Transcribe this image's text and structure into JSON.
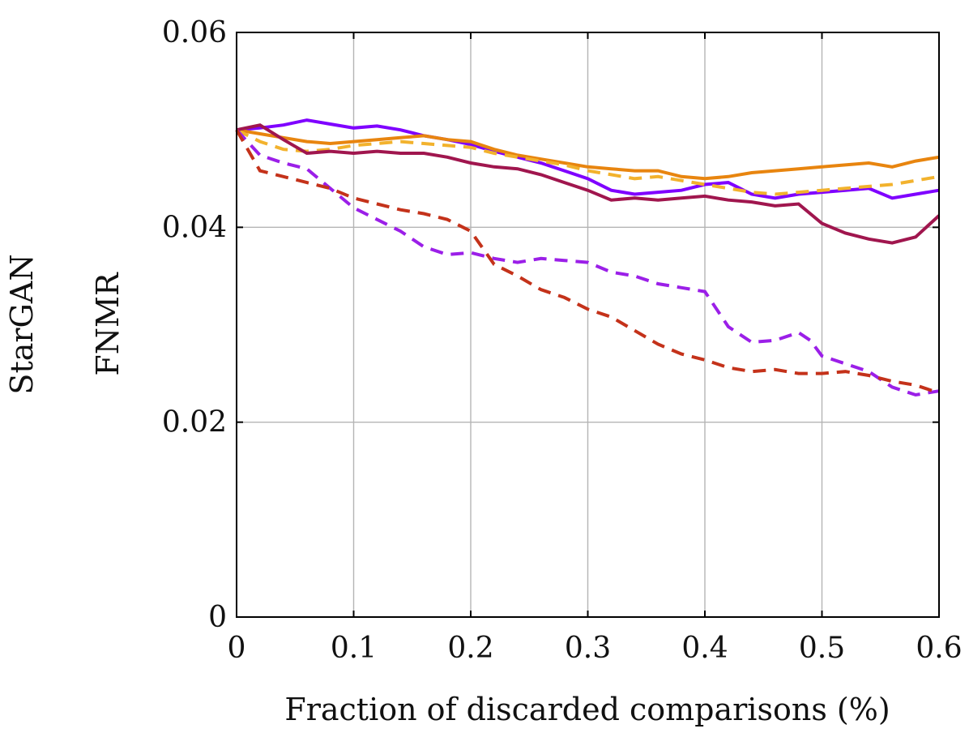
{
  "chart_data": {
    "type": "line",
    "row_label": "StarGAN",
    "xlabel": "Fraction of discarded comparisons (%)",
    "ylabel": "FNMR",
    "xlim": [
      0,
      0.6
    ],
    "ylim": [
      0,
      0.06
    ],
    "xticks": [
      0,
      0.1,
      0.2,
      0.3,
      0.4,
      0.5,
      0.6
    ],
    "xtick_labels": [
      "0",
      "0.1",
      "0.2",
      "0.3",
      "0.4",
      "0.5",
      "0.6"
    ],
    "yticks": [
      0,
      0.02,
      0.04,
      0.06
    ],
    "ytick_labels": [
      "0",
      "0.02",
      "0.04",
      "0.06"
    ],
    "grid": true,
    "series": [
      {
        "name": "purple-solid",
        "color": "#7F00FF",
        "dash": "solid",
        "x": [
          0,
          0.02,
          0.04,
          0.06,
          0.08,
          0.1,
          0.12,
          0.14,
          0.16,
          0.18,
          0.2,
          0.22,
          0.24,
          0.26,
          0.28,
          0.3,
          0.32,
          0.34,
          0.36,
          0.38,
          0.4,
          0.42,
          0.44,
          0.46,
          0.48,
          0.5,
          0.52,
          0.54,
          0.56,
          0.58,
          0.6
        ],
        "y": [
          0.05,
          0.0502,
          0.0505,
          0.051,
          0.0506,
          0.0502,
          0.0504,
          0.05,
          0.0494,
          0.049,
          0.0485,
          0.0478,
          0.0472,
          0.0466,
          0.0458,
          0.045,
          0.0438,
          0.0434,
          0.0436,
          0.0438,
          0.0444,
          0.0446,
          0.0434,
          0.043,
          0.0434,
          0.0436,
          0.0438,
          0.044,
          0.043,
          0.0434,
          0.0438
        ]
      },
      {
        "name": "orange-solid",
        "color": "#E8850F",
        "dash": "solid",
        "x": [
          0,
          0.02,
          0.04,
          0.06,
          0.08,
          0.1,
          0.12,
          0.14,
          0.16,
          0.18,
          0.2,
          0.22,
          0.24,
          0.26,
          0.28,
          0.3,
          0.32,
          0.34,
          0.36,
          0.38,
          0.4,
          0.42,
          0.44,
          0.46,
          0.48,
          0.5,
          0.52,
          0.54,
          0.56,
          0.58,
          0.6
        ],
        "y": [
          0.05,
          0.0496,
          0.0492,
          0.0488,
          0.0486,
          0.0488,
          0.049,
          0.0492,
          0.0494,
          0.049,
          0.0488,
          0.048,
          0.0474,
          0.047,
          0.0466,
          0.0462,
          0.046,
          0.0458,
          0.0458,
          0.0452,
          0.045,
          0.0452,
          0.0456,
          0.0458,
          0.046,
          0.0462,
          0.0464,
          0.0466,
          0.0462,
          0.0468,
          0.0472
        ]
      },
      {
        "name": "yellow-dashed",
        "color": "#F2B22D",
        "dash": "dashed",
        "x": [
          0,
          0.02,
          0.04,
          0.06,
          0.08,
          0.1,
          0.12,
          0.14,
          0.16,
          0.18,
          0.2,
          0.22,
          0.24,
          0.26,
          0.28,
          0.3,
          0.32,
          0.34,
          0.36,
          0.38,
          0.4,
          0.42,
          0.44,
          0.46,
          0.48,
          0.5,
          0.52,
          0.54,
          0.56,
          0.58,
          0.6
        ],
        "y": [
          0.05,
          0.0488,
          0.048,
          0.0478,
          0.048,
          0.0484,
          0.0486,
          0.0488,
          0.0486,
          0.0484,
          0.0482,
          0.0476,
          0.0472,
          0.0468,
          0.0464,
          0.0458,
          0.0454,
          0.045,
          0.0452,
          0.0448,
          0.0444,
          0.044,
          0.0436,
          0.0434,
          0.0436,
          0.0438,
          0.044,
          0.0442,
          0.0444,
          0.0448,
          0.0452
        ]
      },
      {
        "name": "maroon-solid",
        "color": "#A0164E",
        "dash": "solid",
        "x": [
          0,
          0.02,
          0.04,
          0.06,
          0.08,
          0.1,
          0.12,
          0.14,
          0.16,
          0.18,
          0.2,
          0.22,
          0.24,
          0.26,
          0.28,
          0.3,
          0.32,
          0.34,
          0.36,
          0.38,
          0.4,
          0.42,
          0.44,
          0.46,
          0.48,
          0.5,
          0.52,
          0.54,
          0.56,
          0.58,
          0.6
        ],
        "y": [
          0.05,
          0.0505,
          0.049,
          0.0476,
          0.0478,
          0.0476,
          0.0478,
          0.0476,
          0.0476,
          0.0472,
          0.0466,
          0.0462,
          0.046,
          0.0454,
          0.0446,
          0.0438,
          0.0428,
          0.043,
          0.0428,
          0.043,
          0.0432,
          0.0428,
          0.0426,
          0.0422,
          0.0424,
          0.0404,
          0.0394,
          0.0388,
          0.0384,
          0.039,
          0.0412
        ]
      },
      {
        "name": "violet-dashed",
        "color": "#9B1FE8",
        "dash": "dashed",
        "x": [
          0,
          0.02,
          0.04,
          0.06,
          0.08,
          0.1,
          0.12,
          0.14,
          0.16,
          0.18,
          0.2,
          0.22,
          0.24,
          0.26,
          0.28,
          0.3,
          0.32,
          0.34,
          0.36,
          0.38,
          0.4,
          0.41,
          0.42,
          0.44,
          0.46,
          0.48,
          0.49,
          0.5,
          0.52,
          0.54,
          0.56,
          0.58,
          0.6
        ],
        "y": [
          0.05,
          0.0474,
          0.0466,
          0.046,
          0.044,
          0.042,
          0.0408,
          0.0396,
          0.038,
          0.0372,
          0.0374,
          0.0368,
          0.0364,
          0.0368,
          0.0366,
          0.0364,
          0.0354,
          0.035,
          0.0342,
          0.0338,
          0.0334,
          0.0316,
          0.0298,
          0.0282,
          0.0284,
          0.0292,
          0.0284,
          0.0268,
          0.026,
          0.0252,
          0.0236,
          0.0228,
          0.0232
        ]
      },
      {
        "name": "red-dashed",
        "color": "#C4321A",
        "dash": "dashed",
        "x": [
          0,
          0.02,
          0.04,
          0.06,
          0.08,
          0.1,
          0.12,
          0.14,
          0.16,
          0.18,
          0.2,
          0.22,
          0.24,
          0.26,
          0.28,
          0.3,
          0.32,
          0.34,
          0.36,
          0.38,
          0.4,
          0.42,
          0.44,
          0.46,
          0.48,
          0.5,
          0.52,
          0.54,
          0.56,
          0.58,
          0.6
        ],
        "y": [
          0.05,
          0.0458,
          0.0452,
          0.0446,
          0.044,
          0.043,
          0.0424,
          0.0418,
          0.0414,
          0.0408,
          0.0396,
          0.0362,
          0.035,
          0.0336,
          0.0328,
          0.0316,
          0.0308,
          0.0294,
          0.028,
          0.027,
          0.0264,
          0.0256,
          0.0252,
          0.0254,
          0.025,
          0.025,
          0.0252,
          0.0248,
          0.0242,
          0.0238,
          0.023
        ]
      }
    ]
  }
}
